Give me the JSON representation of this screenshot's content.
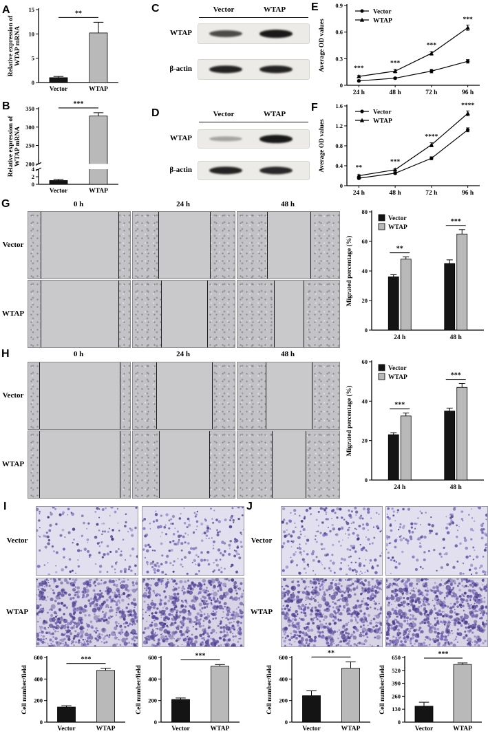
{
  "panel_labels": {
    "A": "A",
    "B": "B",
    "C": "C",
    "D": "D",
    "E": "E",
    "F": "F",
    "G": "G",
    "H": "H",
    "I": "I",
    "J": "J"
  },
  "colors": {
    "bar_black": "#141414",
    "bar_gray": "#b9b9b9",
    "axis": "#000000",
    "transwell_dot": "#5a4a9e"
  },
  "chart_data": {
    "A": {
      "type": "bar",
      "categories": [
        "Vector",
        "WTAP"
      ],
      "values": [
        1,
        10.2
      ],
      "errors": [
        0.25,
        2.2
      ],
      "ylabel": "Relative expression of\nWTAP mRNA",
      "yticks": [
        0,
        5,
        10,
        15
      ],
      "ylim": [
        0,
        15
      ],
      "bar_colors": [
        "#141414",
        "#b9b9b9"
      ],
      "sig": [
        {
          "from": 0,
          "to": 1,
          "label": "**"
        }
      ],
      "layout": {
        "ml": 46,
        "mr": 10,
        "mt": 14,
        "mb": 22
      }
    },
    "B": {
      "type": "bar",
      "categories": [
        "Vector",
        "WTAP"
      ],
      "values": [
        1,
        330
      ],
      "errors": [
        0.3,
        9
      ],
      "ylabel": "Relative expression of\nWTAP mRNA",
      "yticks": [
        0,
        2,
        4,
        200,
        250,
        300,
        350
      ],
      "ylim": [
        0,
        350
      ],
      "axis_break": {
        "low_max": 4,
        "high_min": 200,
        "low_frac": 0.2,
        "gap_frac": 0.07
      },
      "bar_colors": [
        "#141414",
        "#b9b9b9"
      ],
      "sig": [
        {
          "from": 0,
          "to": 1,
          "label": "***"
        }
      ],
      "layout": {
        "ml": 46,
        "mr": 10,
        "mt": 14,
        "mb": 22
      }
    },
    "E": {
      "type": "line",
      "x_labels": [
        "24 h",
        "48 h",
        "72 h",
        "96 h"
      ],
      "series": [
        {
          "name": "Vector",
          "marker": "circle",
          "values": [
            0.05,
            0.08,
            0.16,
            0.27
          ],
          "errors": [
            0.01,
            0.01,
            0.02,
            0.02
          ]
        },
        {
          "name": "WTAP",
          "marker": "triangle",
          "values": [
            0.1,
            0.16,
            0.36,
            0.65
          ],
          "errors": [
            0.01,
            0.02,
            0.02,
            0.03
          ]
        }
      ],
      "ylabel": "Average OD values",
      "yticks": [
        0,
        0.3,
        0.6,
        0.9
      ],
      "ylim": [
        0,
        0.9
      ],
      "point_sig": [
        "***",
        "***",
        "***",
        "***"
      ],
      "legend_position": "top-left",
      "layout": {
        "ml": 44,
        "mr": 12,
        "mt": 8,
        "mb": 22
      }
    },
    "F": {
      "type": "line",
      "x_labels": [
        "24 h",
        "48 h",
        "72 h",
        "96 h"
      ],
      "series": [
        {
          "name": "Vector",
          "marker": "circle",
          "values": [
            0.15,
            0.25,
            0.55,
            1.12
          ],
          "errors": [
            0.02,
            0.02,
            0.03,
            0.04
          ]
        },
        {
          "name": "WTAP",
          "marker": "triangle",
          "values": [
            0.2,
            0.32,
            0.82,
            1.45
          ],
          "errors": [
            0.02,
            0.02,
            0.04,
            0.05
          ]
        }
      ],
      "ylabel": "Average OD values",
      "yticks": [
        0,
        0.4,
        0.8,
        1.2,
        1.6
      ],
      "ylim": [
        0,
        1.6
      ],
      "point_sig": [
        "**",
        "***",
        "****",
        "****"
      ],
      "legend_position": "top-left",
      "layout": {
        "ml": 44,
        "mr": 12,
        "mt": 8,
        "mb": 22
      }
    },
    "G": {
      "type": "grouped_bar",
      "categories": [
        "24 h",
        "48 h"
      ],
      "series": [
        {
          "name": "Vector",
          "color": "#141414",
          "values": [
            36,
            45
          ],
          "errors": [
            1.5,
            2.5
          ]
        },
        {
          "name": "WTAP",
          "color": "#b9b9b9",
          "values": [
            48,
            65
          ],
          "errors": [
            1.5,
            3
          ]
        }
      ],
      "ylabel": "Migrated percentage (%)",
      "yticks": [
        0,
        20,
        40,
        60,
        80
      ],
      "ylim": [
        0,
        80
      ],
      "sig": [
        {
          "cat": 0,
          "label": "**"
        },
        {
          "cat": 1,
          "label": "***"
        }
      ],
      "legend_position": "top-left",
      "layout": {
        "ml": 40,
        "mr": 6,
        "mt": 10,
        "mb": 26
      }
    },
    "H": {
      "type": "grouped_bar",
      "categories": [
        "24 h",
        "48 h"
      ],
      "series": [
        {
          "name": "Vector",
          "color": "#141414",
          "values": [
            23,
            35
          ],
          "errors": [
            1,
            1.5
          ]
        },
        {
          "name": "WTAP",
          "color": "#b9b9b9",
          "values": [
            32.5,
            47
          ],
          "errors": [
            1.5,
            2
          ]
        }
      ],
      "ylabel": "Migrated percentage (%)",
      "yticks": [
        0,
        20,
        40,
        60
      ],
      "ylim": [
        0,
        60
      ],
      "sig": [
        {
          "cat": 0,
          "label": "***"
        },
        {
          "cat": 1,
          "label": "***"
        }
      ],
      "legend_position": "top-left",
      "layout": {
        "ml": 40,
        "mr": 6,
        "mt": 10,
        "mb": 26
      }
    },
    "I1": {
      "type": "bar",
      "categories": [
        "Vector",
        "WTAP"
      ],
      "values": [
        140,
        480
      ],
      "errors": [
        12,
        20
      ],
      "ylabel": "Cell number/field",
      "yticks": [
        0,
        200,
        400,
        600
      ],
      "ylim": [
        0,
        600
      ],
      "bar_colors": [
        "#141414",
        "#b9b9b9"
      ],
      "sig": [
        {
          "from": 0,
          "to": 1,
          "label": "***"
        }
      ],
      "layout": {
        "ml": 40,
        "mr": 8,
        "mt": 14,
        "mb": 24
      }
    },
    "I2": {
      "type": "bar",
      "categories": [
        "Vector",
        "WTAP"
      ],
      "values": [
        210,
        520
      ],
      "errors": [
        14,
        14
      ],
      "ylabel": "Cell number/field",
      "yticks": [
        0,
        200,
        400,
        600
      ],
      "ylim": [
        0,
        600
      ],
      "bar_colors": [
        "#141414",
        "#b9b9b9"
      ],
      "sig": [
        {
          "from": 0,
          "to": 1,
          "label": "***"
        }
      ],
      "layout": {
        "ml": 40,
        "mr": 8,
        "mt": 14,
        "mb": 24
      }
    },
    "J1": {
      "type": "bar",
      "categories": [
        "Vector",
        "WTAP"
      ],
      "values": [
        245,
        500
      ],
      "errors": [
        45,
        60
      ],
      "ylabel": "Cell number/field",
      "yticks": [
        0,
        200,
        400,
        600
      ],
      "ylim": [
        0,
        600
      ],
      "bar_colors": [
        "#141414",
        "#b9b9b9"
      ],
      "sig": [
        {
          "from": 0,
          "to": 1,
          "label": "**"
        }
      ],
      "layout": {
        "ml": 40,
        "mr": 8,
        "mt": 14,
        "mb": 24
      }
    },
    "J2": {
      "type": "bar",
      "categories": [
        "Vector",
        "WTAP"
      ],
      "values": [
        160,
        580
      ],
      "errors": [
        40,
        15
      ],
      "ylabel": "Cell number/field",
      "yticks": [
        0,
        130,
        260,
        390,
        520,
        650
      ],
      "ylim": [
        0,
        650
      ],
      "bar_colors": [
        "#141414",
        "#b9b9b9"
      ],
      "sig": [
        {
          "from": 0,
          "to": 1,
          "label": "***"
        }
      ],
      "layout": {
        "ml": 40,
        "mr": 8,
        "mt": 14,
        "mb": 24
      }
    }
  },
  "blots": {
    "C": {
      "col_headers": [
        "Vector",
        "WTAP"
      ],
      "rows": [
        {
          "label": "WTAP",
          "intensities": [
            0.72,
            0.95
          ]
        },
        {
          "label": "β-actin",
          "intensities": [
            0.9,
            0.9
          ]
        }
      ]
    },
    "D": {
      "col_headers": [
        "Vector",
        "WTAP"
      ],
      "rows": [
        {
          "label": "WTAP",
          "intensities": [
            0.32,
            0.95
          ]
        },
        {
          "label": "β-actin",
          "intensities": [
            0.9,
            0.88
          ]
        }
      ]
    }
  },
  "wound": {
    "G": {
      "col_headers": [
        "0 h",
        "24 h",
        "48 h"
      ],
      "row_labels": [
        "Vector",
        "WTAP"
      ],
      "gaps": [
        [
          0.76,
          0.5,
          0.42
        ],
        [
          0.76,
          0.44,
          0.28
        ]
      ]
    },
    "H": {
      "col_headers": [
        "0 h",
        "24 h",
        "48 h"
      ],
      "row_labels": [
        "Vector",
        "WTAP"
      ],
      "gaps": [
        [
          0.78,
          0.54,
          0.44
        ],
        [
          0.78,
          0.48,
          0.32
        ]
      ]
    }
  },
  "transwell": {
    "I": {
      "row_labels": [
        "Vector",
        "WTAP"
      ],
      "counts": [
        [
          150,
          210
        ],
        [
          480,
          520
        ]
      ]
    },
    "J": {
      "row_labels": [
        "Vector",
        "WTAP"
      ],
      "counts": [
        [
          240,
          170
        ],
        [
          500,
          580
        ]
      ]
    }
  }
}
